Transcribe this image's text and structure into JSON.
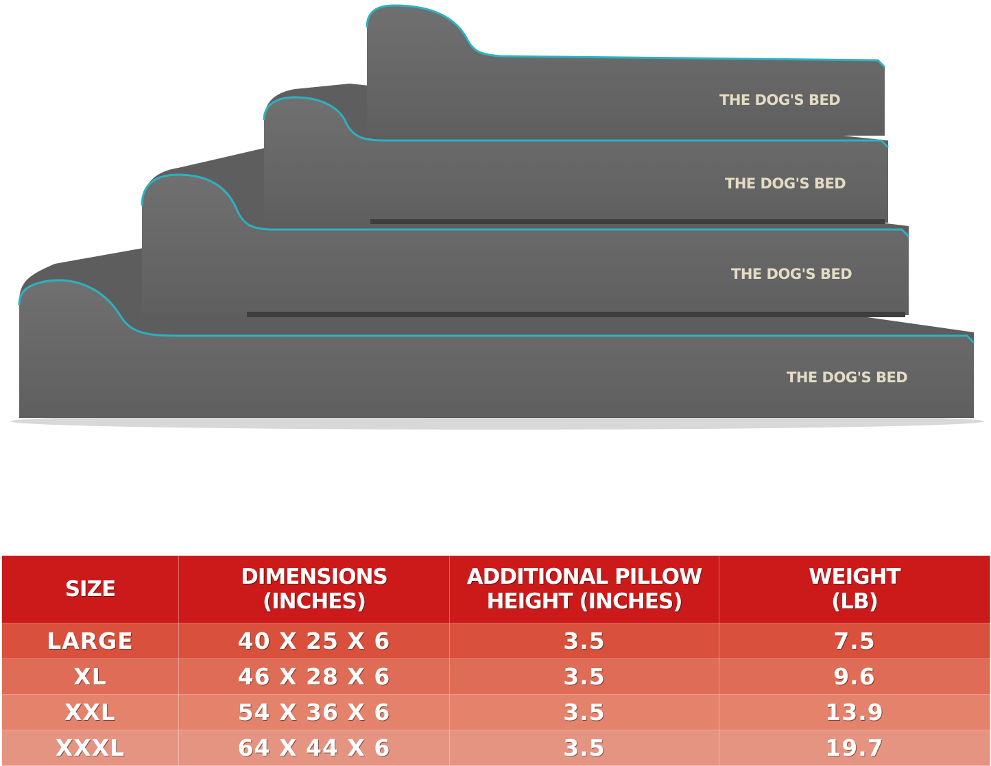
{
  "product": {
    "brand_label": "THE DOG'S BED",
    "beds": [
      {
        "label": "THE DOG'S BED"
      },
      {
        "label": "THE DOG'S BED"
      },
      {
        "label": "THE DOG'S BED"
      },
      {
        "label": "THE DOG'S BED"
      }
    ],
    "colors": {
      "cover": "#6b6b6c",
      "piping": "#2cb2c0",
      "logo": "#e4dcc2"
    }
  },
  "size_table": {
    "headers": [
      {
        "line1": "SIZE",
        "line2": ""
      },
      {
        "line1": "DIMENSIONS",
        "line2": "(INCHES)"
      },
      {
        "line1": "ADDITIONAL PILLOW",
        "line2": "HEIGHT (INCHES)"
      },
      {
        "line1": "WEIGHT",
        "line2": "(LB)"
      }
    ],
    "rows": [
      [
        "LARGE",
        "40 X 25 X 6",
        "3.5",
        "7.5"
      ],
      [
        "XL",
        "46 X 28 X 6",
        "3.5",
        "9.6"
      ],
      [
        "XXL",
        "54 X 36 X 6",
        "3.5",
        "13.9"
      ],
      [
        "XXXL",
        "64 X 44 X 6",
        "3.5",
        "19.7"
      ]
    ],
    "colors": {
      "header": "#cc1a1a",
      "row_gradient": [
        "#d9503c",
        "#df6c56",
        "#e4826c",
        "#e69482"
      ]
    }
  }
}
